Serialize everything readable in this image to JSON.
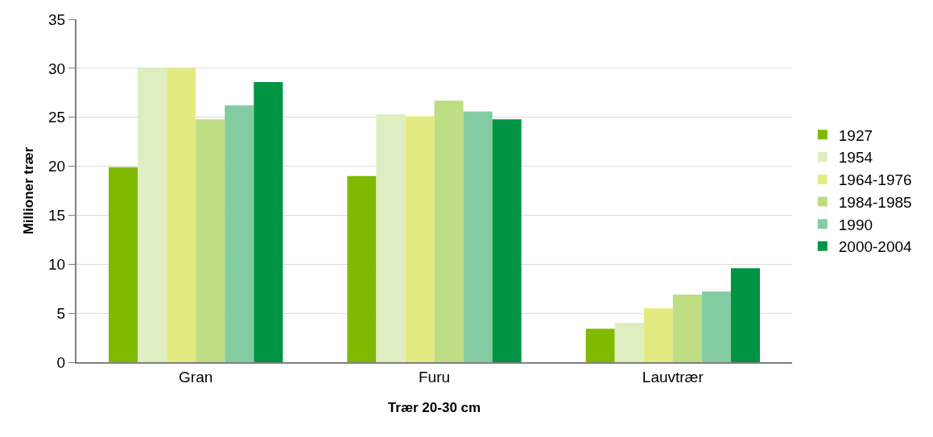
{
  "chart_data": {
    "type": "bar",
    "xlabel": "Trær 20-30 cm",
    "ylabel": "Millioner trær",
    "categories": [
      "Gran",
      "Furu",
      "Lauvtrær"
    ],
    "series": [
      {
        "name": "1927",
        "color": "#7fba00",
        "values": [
          19.9,
          19.0,
          3.4
        ]
      },
      {
        "name": "1954",
        "color": "#dfeec0",
        "values": [
          30.0,
          25.3,
          4.0
        ]
      },
      {
        "name": "1964-1976",
        "color": "#e3eb80",
        "values": [
          30.0,
          25.1,
          5.5
        ]
      },
      {
        "name": "1984-1985",
        "color": "#bfdd83",
        "values": [
          24.8,
          26.7,
          6.9
        ]
      },
      {
        "name": "1990",
        "color": "#83cca2",
        "values": [
          26.2,
          25.6,
          7.2
        ]
      },
      {
        "name": "2000-2004",
        "color": "#009444",
        "values": [
          28.6,
          24.8,
          9.6
        ]
      }
    ],
    "ylim": [
      0,
      35
    ],
    "yticks": [
      0,
      5,
      10,
      15,
      20,
      25,
      30,
      35
    ],
    "grid": "y",
    "legend": "right"
  }
}
